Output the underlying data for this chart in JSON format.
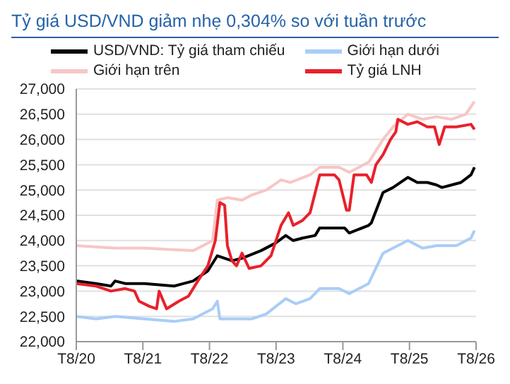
{
  "chart_data": {
    "type": "line",
    "title": "Tỷ giá USD/VND giảm nhẹ 0,304% so với tuần trước",
    "legend": "top",
    "grid": "y",
    "marker": "none",
    "line_style": "solid",
    "xlim": [
      "2020-08-01",
      "2026-08-01"
    ],
    "xticks": [
      {
        "value": "2020-08-01",
        "label": "T8/20"
      },
      {
        "value": "2021-08-01",
        "label": "T8/21"
      },
      {
        "value": "2022-08-01",
        "label": "T8/22"
      },
      {
        "value": "2023-08-01",
        "label": "T8/23"
      },
      {
        "value": "2024-08-01",
        "label": "T8/24"
      },
      {
        "value": "2025-08-01",
        "label": "T8/25"
      },
      {
        "value": "2026-08-01",
        "label": "T8/26"
      }
    ],
    "ylim": [
      22000,
      27000
    ],
    "yticks": [
      {
        "value": 22000,
        "label": "22,000"
      },
      {
        "value": 22500,
        "label": "22,500"
      },
      {
        "value": 23000,
        "label": "23,000"
      },
      {
        "value": 23500,
        "label": "23,500"
      },
      {
        "value": 24000,
        "label": "24,000"
      },
      {
        "value": 24500,
        "label": "24,500"
      },
      {
        "value": 25000,
        "label": "25,000"
      },
      {
        "value": 25500,
        "label": "25,500"
      },
      {
        "value": 26000,
        "label": "26,000"
      },
      {
        "value": 26500,
        "label": "26,500"
      },
      {
        "value": 27000,
        "label": "27,000"
      }
    ],
    "series": [
      {
        "name": "USD/VND: Tỷ giá tham chiếu",
        "color": "#000000",
        "x": [
          "2020-08-01",
          "2020-11-17",
          "2021-02-07",
          "2021-03-02",
          "2021-04-26",
          "2021-08-10",
          "2022-01-19",
          "2022-05-03",
          "2022-07-23",
          "2022-09-13",
          "2022-12-02",
          "2023-01-26",
          "2023-05-10",
          "2023-07-29",
          "2023-09-23",
          "2023-11-03",
          "2023-12-24",
          "2024-03-02",
          "2024-03-27",
          "2024-08-10",
          "2024-09-05",
          "2024-12-20",
          "2025-01-04",
          "2025-03-09",
          "2025-05-03",
          "2025-07-23",
          "2025-09-13",
          "2025-11-07",
          "2025-12-27",
          "2026-01-26",
          "2026-03-20",
          "2026-05-10",
          "2026-07-04",
          "2026-07-23"
        ],
        "values": [
          23200,
          23150,
          23100,
          23200,
          23150,
          23150,
          23100,
          23200,
          23400,
          23700,
          23600,
          23650,
          23800,
          23950,
          24100,
          24000,
          24050,
          24100,
          24250,
          24250,
          24150,
          24300,
          24350,
          24950,
          25050,
          25250,
          25150,
          25150,
          25100,
          25050,
          25100,
          25150,
          25300,
          25450
        ]
      },
      {
        "name": "Giới hạn dưới",
        "color": "#a9cdf7",
        "x": [
          "2020-08-01",
          "2020-11-17",
          "2021-03-02",
          "2021-08-10",
          "2022-01-19",
          "2022-05-03",
          "2022-08-18",
          "2022-09-13",
          "2022-09-27",
          "2023-03-20",
          "2023-06-09",
          "2023-09-23",
          "2023-11-17",
          "2024-02-03",
          "2024-03-27",
          "2024-07-11",
          "2024-09-05",
          "2024-12-20",
          "2025-03-09",
          "2025-07-23",
          "2025-10-12",
          "2025-12-27",
          "2026-04-15",
          "2026-07-04",
          "2026-07-23"
        ],
        "values": [
          22500,
          22450,
          22500,
          22450,
          22400,
          22450,
          22650,
          22800,
          22450,
          22450,
          22550,
          22850,
          22750,
          22850,
          23050,
          23050,
          22950,
          23150,
          23750,
          24000,
          23850,
          23900,
          23900,
          24050,
          24200
        ]
      },
      {
        "name": "Giới hạn trên",
        "color": "#f7c6c6",
        "x": [
          "2020-08-01",
          "2021-03-02",
          "2021-08-10",
          "2022-05-03",
          "2022-06-27",
          "2022-08-18",
          "2022-09-13",
          "2022-11-07",
          "2023-01-26",
          "2023-03-20",
          "2023-06-09",
          "2023-08-28",
          "2023-10-19",
          "2024-02-03",
          "2024-03-27",
          "2024-07-11",
          "2024-09-05",
          "2024-12-20",
          "2025-03-09",
          "2025-05-03",
          "2025-07-23",
          "2025-10-12",
          "2025-12-27",
          "2026-03-20",
          "2026-06-05",
          "2026-07-23"
        ],
        "values": [
          23900,
          23850,
          23850,
          23800,
          23900,
          24000,
          24800,
          24850,
          24800,
          24900,
          25000,
          25200,
          25150,
          25300,
          25450,
          25450,
          25350,
          25550,
          26000,
          26250,
          26500,
          26400,
          26450,
          26400,
          26500,
          26750
        ]
      },
      {
        "name": "Tỷ giá LNH",
        "color": "#e8212b",
        "x": [
          "2020-08-01",
          "2020-11-17",
          "2021-02-07",
          "2021-04-26",
          "2021-06-16",
          "2021-07-11",
          "2021-09-05",
          "2021-10-15",
          "2021-10-29",
          "2021-12-09",
          "2022-02-14",
          "2022-04-08",
          "2022-05-29",
          "2022-07-23",
          "2022-09-02",
          "2022-09-27",
          "2022-10-23",
          "2022-11-07",
          "2022-12-02",
          "2022-12-27",
          "2023-01-26",
          "2023-03-06",
          "2023-05-10",
          "2023-07-04",
          "2023-08-28",
          "2023-10-08",
          "2023-11-03",
          "2023-12-24",
          "2024-02-03",
          "2024-03-27",
          "2024-06-16",
          "2024-07-11",
          "2024-08-21",
          "2024-09-05",
          "2024-10-01",
          "2024-12-09",
          "2025-01-04",
          "2025-01-29",
          "2025-03-09",
          "2025-04-19",
          "2025-05-18",
          "2025-05-29",
          "2025-07-23",
          "2025-09-13",
          "2025-11-07",
          "2025-12-16",
          "2026-01-11",
          "2026-02-10",
          "2026-04-15",
          "2026-07-04",
          "2026-07-23"
        ],
        "values": [
          23150,
          23100,
          23000,
          23050,
          23000,
          22800,
          22700,
          22650,
          23000,
          22650,
          22800,
          22900,
          23200,
          23500,
          24000,
          24750,
          24700,
          23900,
          23600,
          23500,
          23750,
          23450,
          23500,
          23700,
          24300,
          24550,
          24300,
          24400,
          24550,
          25300,
          25300,
          25200,
          24600,
          24600,
          25300,
          25300,
          25150,
          25500,
          25700,
          26000,
          26150,
          26400,
          26300,
          26350,
          26250,
          26250,
          25900,
          26250,
          26250,
          26300,
          26200
        ]
      }
    ]
  }
}
